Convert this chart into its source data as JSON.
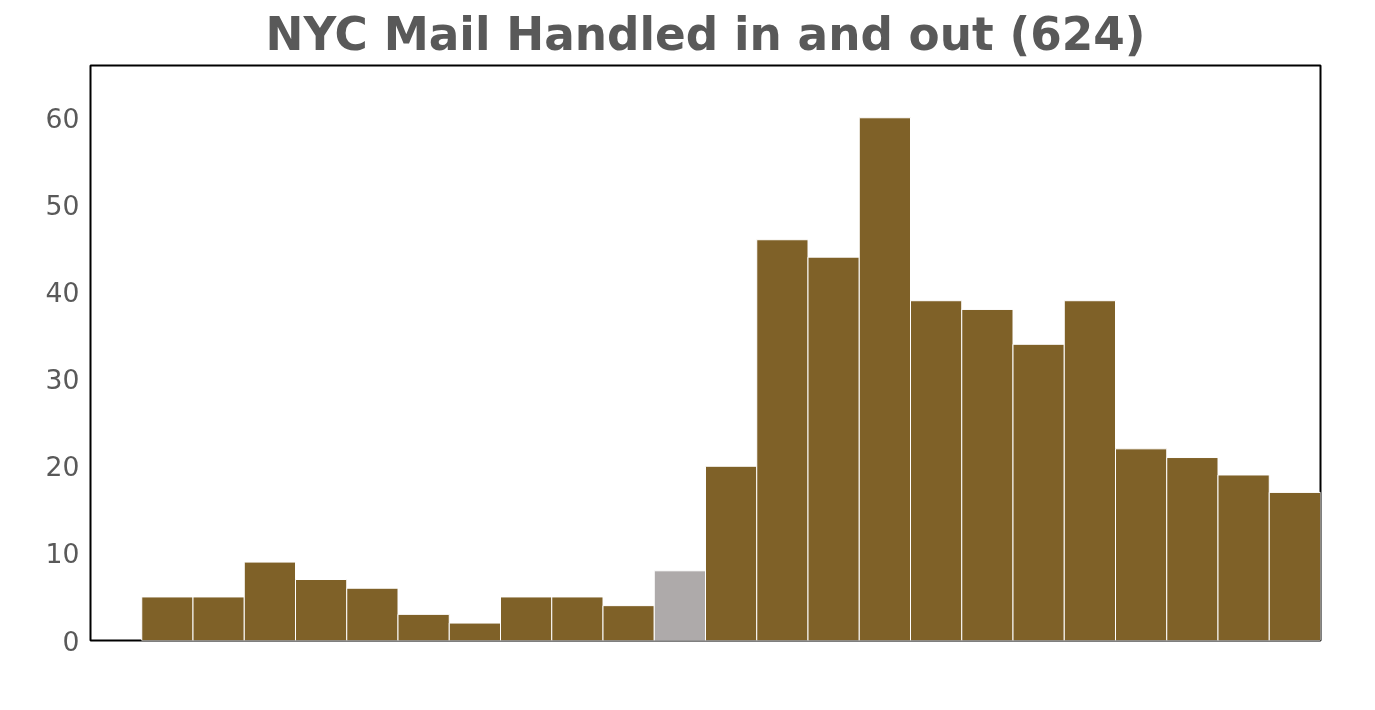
{
  "chart_data": {
    "type": "bar",
    "title": "NYC Mail Handled in and out (624)",
    "categories": [
      null,
      null,
      null,
      null,
      null,
      null,
      null,
      null,
      null,
      null,
      null,
      null,
      null,
      null,
      null,
      null,
      null,
      null,
      null,
      null,
      null,
      null,
      null
    ],
    "values": [
      5,
      5,
      9,
      7,
      6,
      3,
      2,
      5,
      5,
      4,
      8,
      20,
      46,
      44,
      60,
      39,
      38,
      34,
      39,
      22,
      21,
      19,
      17
    ],
    "colors": [
      "#7f6128",
      "#7f6128",
      "#7f6128",
      "#7f6128",
      "#7f6128",
      "#7f6128",
      "#7f6128",
      "#7f6128",
      "#7f6128",
      "#7f6128",
      "#aeaaaa",
      "#7f6128",
      "#7f6128",
      "#7f6128",
      "#7f6128",
      "#7f6128",
      "#7f6128",
      "#7f6128",
      "#7f6128",
      "#7f6128",
      "#7f6128",
      "#7f6128",
      "#7f6128"
    ],
    "ylim": [
      0,
      66
    ],
    "yticks": [
      0,
      10,
      20,
      30,
      40,
      50,
      60
    ],
    "grid": false,
    "tick_labels": "y"
  }
}
